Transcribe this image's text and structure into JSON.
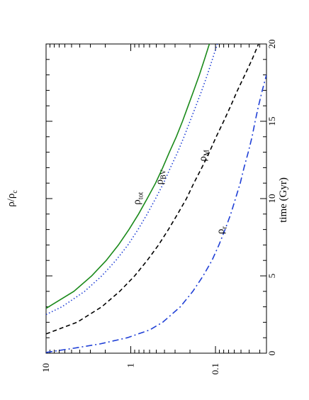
{
  "chart_data": {
    "type": "line",
    "orientation": "rotated 90 degrees (page landscape)",
    "xlabel": "time (Gyr)",
    "ylabel": "ρ/ρ",
    "ylabel_subscript": "c",
    "xlim": [
      0,
      20
    ],
    "ylim": [
      0.025,
      10
    ],
    "yscale": "log",
    "x_ticks": [
      "0",
      "5",
      "10",
      "15",
      "20"
    ],
    "y_ticks": [
      "10",
      "1",
      "0.1"
    ],
    "grid": false,
    "series": [
      {
        "name": "ρtot",
        "label_main": "ρ",
        "label_sub": "tot",
        "color": "#1a8a1a",
        "dash": "solid",
        "x": [
          2.9,
          4,
          5,
          6,
          7,
          8,
          9,
          10,
          11,
          12,
          13,
          14,
          15,
          16,
          17,
          18,
          19,
          20
        ],
        "y": [
          10,
          4.7,
          2.9,
          1.95,
          1.4,
          1.05,
          0.81,
          0.64,
          0.51,
          0.42,
          0.35,
          0.29,
          0.245,
          0.21,
          0.18,
          0.155,
          0.135,
          0.118
        ]
      },
      {
        "name": "ρBV",
        "label_main": "ρ",
        "label_sub": "BV",
        "color": "#1f3fd6",
        "dash": "dotted",
        "x": [
          2.5,
          3,
          4,
          5,
          6,
          7,
          8,
          9,
          10,
          11,
          12,
          13,
          14,
          15,
          16,
          17,
          18,
          19,
          20
        ],
        "y": [
          10,
          6.5,
          3.5,
          2.2,
          1.5,
          1.08,
          0.82,
          0.64,
          0.51,
          0.41,
          0.34,
          0.28,
          0.235,
          0.2,
          0.17,
          0.145,
          0.125,
          0.109,
          0.095
        ]
      },
      {
        "name": "ρM",
        "label_main": "ρ",
        "label_sub": "M",
        "color": "#000000",
        "dash": "dashed",
        "x": [
          1.25,
          2,
          3,
          4,
          5,
          6,
          7,
          8,
          9,
          10,
          11,
          12,
          13,
          14,
          15,
          16,
          17,
          18,
          19,
          20
        ],
        "y": [
          10,
          4.3,
          2.2,
          1.35,
          0.9,
          0.64,
          0.47,
          0.36,
          0.28,
          0.22,
          0.18,
          0.145,
          0.118,
          0.098,
          0.08,
          0.066,
          0.055,
          0.045,
          0.037,
          0.031
        ]
      },
      {
        "name": "ρr",
        "label_main": "ρ",
        "label_sub": "r",
        "color": "#1f3fd6",
        "dash": "dashdot",
        "x": [
          0.05,
          0.3,
          0.6,
          1,
          1.5,
          2,
          3,
          4,
          5,
          6,
          7,
          8,
          9,
          10,
          11,
          12,
          13,
          14,
          15,
          16,
          17,
          18
        ],
        "y": [
          10,
          5,
          2.3,
          1.1,
          0.6,
          0.42,
          0.26,
          0.185,
          0.14,
          0.11,
          0.091,
          0.077,
          0.066,
          0.058,
          0.051,
          0.046,
          0.041,
          0.037,
          0.034,
          0.031,
          0.028,
          0.025
        ]
      }
    ]
  }
}
